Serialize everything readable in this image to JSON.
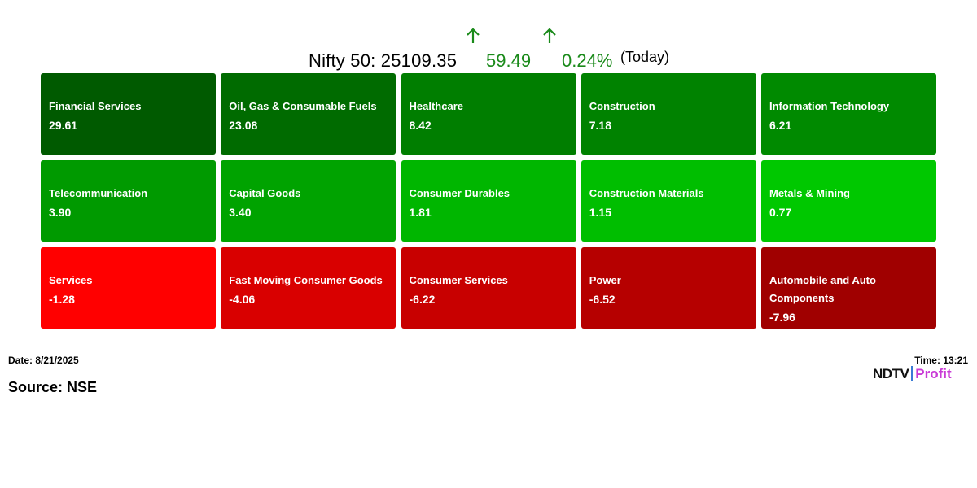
{
  "header": {
    "index_label": "Nifty 50: 25109.35",
    "change": "59.49",
    "change_pct": "0.24%",
    "period": "(Today)",
    "direction": "up",
    "up_color": "#1a8a1a"
  },
  "chart_data": {
    "type": "heatmap",
    "unit": "index points contribution",
    "cells": [
      {
        "label": "Financial Services",
        "value": "29.61",
        "color": "#005a00"
      },
      {
        "label": "Oil, Gas & Consumable Fuels",
        "value": "23.08",
        "color": "#006b00"
      },
      {
        "label": "Healthcare",
        "value": "8.42",
        "color": "#007e00"
      },
      {
        "label": "Construction",
        "value": "7.18",
        "color": "#008200"
      },
      {
        "label": "Information Technology",
        "value": "6.21",
        "color": "#008a00"
      },
      {
        "label": "Telecommunication",
        "value": "3.90",
        "color": "#009a00"
      },
      {
        "label": "Capital Goods",
        "value": "3.40",
        "color": "#00a300"
      },
      {
        "label": "Consumer Durables",
        "value": "1.81",
        "color": "#00b600"
      },
      {
        "label": "Construction Materials",
        "value": "1.15",
        "color": "#00be00"
      },
      {
        "label": "Metals & Mining",
        "value": "0.77",
        "color": "#00c800"
      },
      {
        "label": "Services",
        "value": "-1.28",
        "color": "#ff0000"
      },
      {
        "label": "Fast Moving Consumer Goods",
        "value": "-4.06",
        "color": "#d90000"
      },
      {
        "label": "Consumer Services",
        "value": "-6.22",
        "color": "#c80000"
      },
      {
        "label": "Power",
        "value": "-6.52",
        "color": "#b60000"
      },
      {
        "label": "Automobile and Auto Components",
        "value": "-7.96",
        "color": "#a00000"
      }
    ]
  },
  "footer": {
    "date": "Date: 8/21/2025",
    "time": "Time: 13:21",
    "source": "Source: NSE",
    "logo_ndtv": "NDTV",
    "logo_profit": "Profit"
  }
}
